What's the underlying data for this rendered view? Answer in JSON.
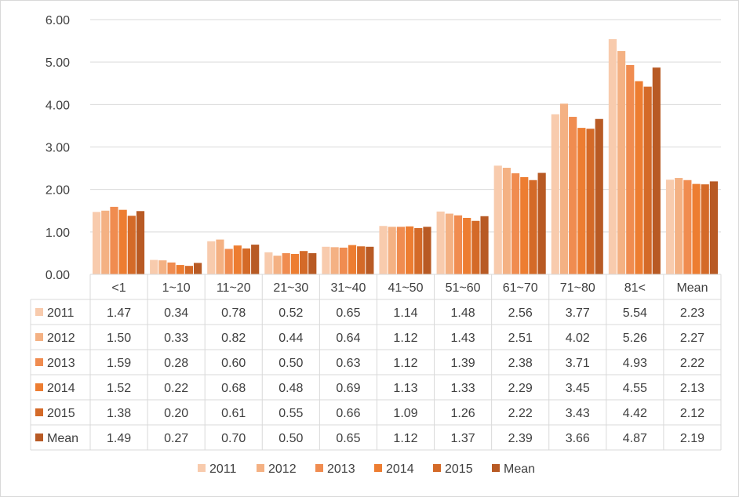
{
  "chart_data": {
    "type": "bar",
    "title": "",
    "xlabel": "",
    "ylabel": "",
    "ylim": [
      0,
      6
    ],
    "yticks": [
      "0.00",
      "1.00",
      "2.00",
      "3.00",
      "4.00",
      "5.00",
      "6.00"
    ],
    "grid": true,
    "legend_position": "bottom",
    "data_table": true,
    "categories": [
      "<1",
      "1~10",
      "11~20",
      "21~30",
      "31~40",
      "41~50",
      "51~60",
      "61~70",
      "71~80",
      "81<",
      "Mean"
    ],
    "series": [
      {
        "name": "2011",
        "color": "#f8cbad",
        "values": [
          1.47,
          0.34,
          0.78,
          0.52,
          0.65,
          1.14,
          1.48,
          2.56,
          3.77,
          5.54,
          2.23
        ]
      },
      {
        "name": "2012",
        "color": "#f4b183",
        "values": [
          1.5,
          0.33,
          0.82,
          0.44,
          0.64,
          1.12,
          1.43,
          2.51,
          4.02,
          5.26,
          2.27
        ]
      },
      {
        "name": "2013",
        "color": "#f08c50",
        "values": [
          1.59,
          0.28,
          0.6,
          0.5,
          0.63,
          1.12,
          1.39,
          2.38,
          3.71,
          4.93,
          2.22
        ]
      },
      {
        "name": "2014",
        "color": "#ed7d31",
        "values": [
          1.52,
          0.22,
          0.68,
          0.48,
          0.69,
          1.13,
          1.33,
          2.29,
          3.45,
          4.55,
          2.13
        ]
      },
      {
        "name": "2015",
        "color": "#d46a28",
        "values": [
          1.38,
          0.2,
          0.61,
          0.55,
          0.66,
          1.09,
          1.26,
          2.22,
          3.43,
          4.42,
          2.12
        ]
      },
      {
        "name": "Mean",
        "color": "#b85a24",
        "values": [
          1.49,
          0.27,
          0.7,
          0.5,
          0.65,
          1.12,
          1.37,
          2.39,
          3.66,
          4.87,
          2.19
        ]
      }
    ]
  }
}
